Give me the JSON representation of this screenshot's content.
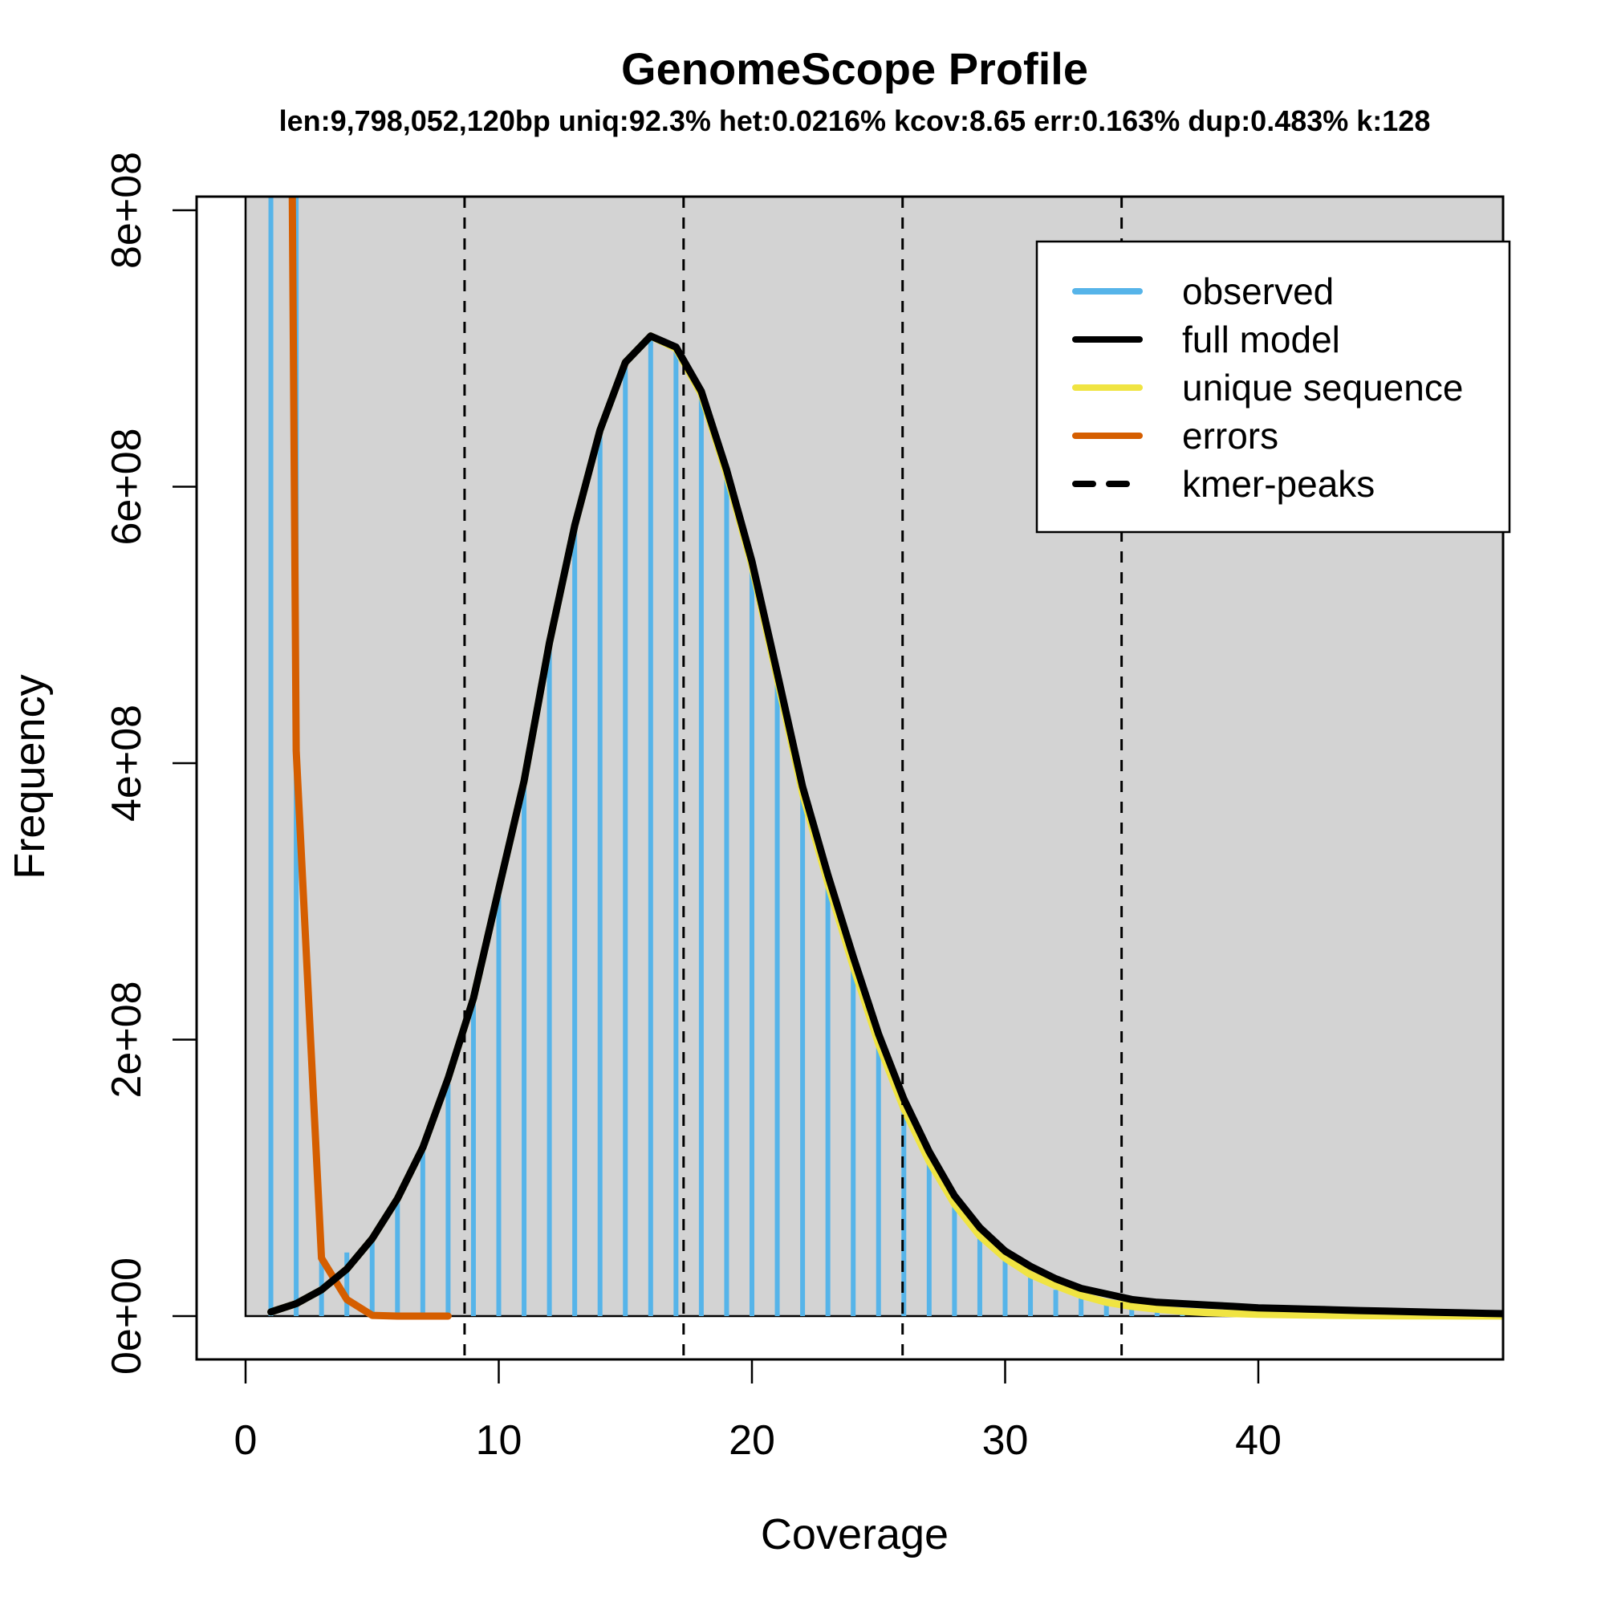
{
  "chart_data": {
    "type": "line",
    "title": "GenomeScope Profile",
    "subtitle": "len:9,798,052,120bp uniq:92.3%  het:0.0216% kcov:8.65 err:0.163%  dup:0.483%  k:128",
    "stats": {
      "len": "9,798,052,120bp",
      "uniq": "92.3%",
      "het": "0.0216%",
      "kcov": "8.65",
      "err": "0.163%",
      "dup": "0.483%",
      "k": "128"
    },
    "xlabel": "Coverage",
    "ylabel": "Frequency",
    "xlim": [
      -1.94,
      49.7
    ],
    "ylim": [
      -31000000.0,
      810000000.0
    ],
    "x_ticks": [
      0,
      10,
      20,
      30,
      40
    ],
    "x_tick_labels": [
      "0",
      "10",
      "20",
      "30",
      "40"
    ],
    "y_ticks": [
      0,
      200000000,
      400000000,
      600000000,
      800000000
    ],
    "y_tick_labels": [
      "0e+00",
      "2e+08",
      "4e+08",
      "6e+08",
      "8e+08"
    ],
    "grid": false,
    "background_region": {
      "x_from": 0,
      "color": "#d3d3d3"
    },
    "legend_position": "topright",
    "kmer_peaks": [
      8.65,
      17.3,
      25.95,
      34.6
    ],
    "series": [
      {
        "name": "observed",
        "style": "vertical-bars",
        "color": "#56b4e9",
        "x": [
          1,
          2,
          3,
          4,
          5,
          6,
          7,
          8,
          9,
          10,
          11,
          12,
          13,
          14,
          15,
          16,
          17,
          18,
          19,
          20,
          21,
          22,
          23,
          24,
          25,
          26,
          27,
          28,
          29,
          30,
          31,
          32,
          33,
          34,
          35,
          36,
          37,
          38,
          39,
          40,
          41,
          42,
          43,
          44,
          45,
          46,
          47,
          48,
          49
        ],
        "values": [
          900000000,
          900000000,
          40000000,
          46000000,
          56000000,
          83000000,
          120000000,
          168000000,
          226000000,
          305000000,
          383000000,
          483000000,
          568000000,
          638000000,
          686000000,
          706000000,
          698000000,
          666000000,
          608000000,
          544000000,
          462000000,
          379000000,
          315000000,
          256000000,
          200000000,
          152000000,
          112000000,
          82000000,
          58000000,
          41000000,
          29000000,
          19000000,
          13000000,
          9000000,
          6000000,
          4000000,
          3000000,
          2000000,
          1500000,
          1000000,
          800000,
          600000,
          500000,
          400000,
          300000,
          250000,
          200000,
          150000,
          100000
        ]
      },
      {
        "name": "full model",
        "style": "line",
        "color": "#000000",
        "x": [
          1,
          2,
          3,
          4,
          5,
          6,
          7,
          8,
          9,
          10,
          11,
          12,
          13,
          14,
          15,
          16,
          17,
          18,
          19,
          20,
          21,
          22,
          23,
          24,
          25,
          26,
          27,
          28,
          29,
          30,
          31,
          32,
          33,
          34,
          35,
          36,
          37,
          38,
          39,
          40,
          41,
          42,
          43,
          44,
          45,
          46,
          47,
          48,
          49,
          50
        ],
        "values": [
          3000000,
          9000000,
          19000000,
          34000000,
          56000000,
          85000000,
          122000000,
          172000000,
          230000000,
          309000000,
          387000000,
          487000000,
          572000000,
          641000000,
          690000000,
          709000000,
          701000000,
          669000000,
          612000000,
          546000000,
          465000000,
          383000000,
          319000000,
          260000000,
          204000000,
          157000000,
          119000000,
          87000000,
          64000000,
          47000000,
          36000000,
          27000000,
          20000000,
          16000000,
          12000000,
          10000000,
          9000000,
          8000000,
          7000000,
          6000000,
          5500000,
          5000000,
          4500000,
          4000000,
          3600000,
          3200000,
          2800000,
          2400000,
          2000000,
          1600000
        ]
      },
      {
        "name": "unique sequence",
        "style": "line",
        "color": "#f0e442",
        "x": [
          1,
          2,
          3,
          4,
          5,
          6,
          7,
          8,
          9,
          10,
          11,
          12,
          13,
          14,
          15,
          16,
          17,
          18,
          19,
          20,
          21,
          22,
          23,
          24,
          25,
          26,
          27,
          28,
          29,
          30,
          31,
          32,
          33,
          34,
          35,
          36,
          37,
          38,
          39,
          40,
          41,
          42,
          43,
          44,
          45,
          46,
          47,
          48,
          49,
          50
        ],
        "values": [
          3000000,
          9000000,
          19000000,
          34000000,
          56000000,
          85000000,
          122000000,
          172000000,
          230000000,
          309000000,
          387000000,
          487000000,
          572000000,
          641000000,
          690000000,
          709000000,
          700000000,
          667000000,
          609000000,
          543000000,
          461000000,
          378000000,
          313000000,
          253000000,
          197000000,
          150000000,
          112000000,
          81000000,
          58000000,
          42000000,
          30000000,
          22000000,
          15000000,
          10000000,
          7000000,
          5000000,
          3500000,
          2500000,
          1800000,
          1300000,
          1000000,
          700000,
          500000,
          350000,
          250000,
          180000,
          120000,
          80000,
          50000,
          30000
        ]
      },
      {
        "name": "errors",
        "style": "line",
        "color": "#d55e00",
        "x": [
          1,
          2,
          3,
          4,
          5,
          6,
          7,
          8
        ],
        "values": [
          3000000000,
          409000000,
          42000000,
          12000000,
          500000,
          0,
          0,
          0
        ]
      },
      {
        "name": "kmer-peaks",
        "style": "dashed-vertical",
        "color": "#000000",
        "x": [
          8.65,
          17.3,
          25.95,
          34.6
        ]
      }
    ]
  },
  "legend": {
    "items": [
      {
        "label": "observed",
        "color": "#56b4e9",
        "dash": false
      },
      {
        "label": "full model",
        "color": "#000000",
        "dash": false
      },
      {
        "label": "unique sequence",
        "color": "#f0e442",
        "dash": false
      },
      {
        "label": "errors",
        "color": "#d55e00",
        "dash": false
      },
      {
        "label": "kmer-peaks",
        "color": "#000000",
        "dash": true
      }
    ]
  }
}
